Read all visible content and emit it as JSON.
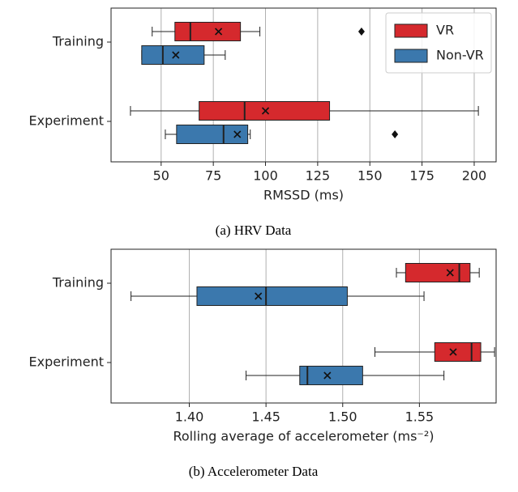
{
  "chart_data": [
    {
      "type": "box",
      "orientation": "horizontal",
      "caption": "(a) HRV Data",
      "xlabel": "RMSSD (ms)",
      "categories": [
        "Training",
        "Experiment"
      ],
      "xlim": [
        26,
        210.5
      ],
      "xticks": [
        50,
        75,
        100,
        125,
        150,
        175,
        200
      ],
      "grid": true,
      "legend": "upper right",
      "series": [
        {
          "name": "VR",
          "color": "#d5292d",
          "values": [
            {
              "whislo": 45.7,
              "q1": 56.6,
              "med": 64,
              "mean": 77.5,
              "q3": 88,
              "whishi": 97.3,
              "fliers": [
                146
              ]
            },
            {
              "whislo": 35.3,
              "q1": 68.2,
              "med": 90,
              "mean": 100,
              "q3": 130.7,
              "whishi": 202,
              "fliers": []
            }
          ]
        },
        {
          "name": "Non-VR",
          "color": "#3b78ad",
          "values": [
            {
              "whislo": 40.7,
              "q1": 40.7,
              "med": 50.8,
              "mean": 57,
              "q3": 70.6,
              "whishi": 80.7,
              "fliers": []
            },
            {
              "whislo": 52,
              "q1": 57.4,
              "med": 79.9,
              "mean": 86.5,
              "q3": 91.5,
              "whishi": 92.7,
              "fliers": [
                162
              ]
            }
          ]
        }
      ]
    },
    {
      "type": "box",
      "orientation": "horizontal",
      "caption": "(b) Accelerometer Data",
      "xlabel": "Rolling average of accelerometer (ms⁻²)",
      "categories": [
        "Training",
        "Experiment"
      ],
      "xlim": [
        1.349,
        1.6
      ],
      "xticks": [
        {
          "value": 1.4,
          "label": "1.40"
        },
        1.45,
        {
          "value": 1.5,
          "label": "1.50"
        },
        1.55
      ],
      "grid": true,
      "series": [
        {
          "name": "VR",
          "color": "#d5292d",
          "values": [
            {
              "whislo": 1.535,
              "q1": 1.541,
              "med": 1.576,
              "mean": 1.57,
              "q3": 1.583,
              "whishi": 1.589,
              "fliers": []
            },
            {
              "whislo": 1.521,
              "q1": 1.56,
              "med": 1.584,
              "mean": 1.572,
              "q3": 1.59,
              "whishi": 1.599,
              "fliers": []
            }
          ]
        },
        {
          "name": "Non-VR",
          "color": "#3b78ad",
          "values": [
            {
              "whislo": 1.362,
              "q1": 1.405,
              "med": 1.45,
              "mean": 1.445,
              "q3": 1.503,
              "whishi": 1.553,
              "fliers": []
            },
            {
              "whislo": 1.437,
              "q1": 1.472,
              "med": 1.477,
              "mean": 1.49,
              "q3": 1.513,
              "whishi": 1.566,
              "fliers": []
            }
          ]
        }
      ]
    }
  ]
}
